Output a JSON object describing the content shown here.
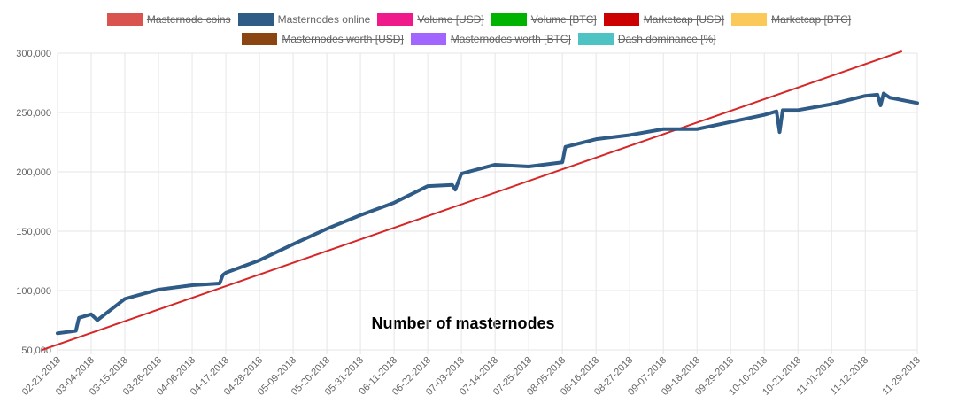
{
  "chart_data": {
    "type": "line",
    "annotation": "Number of masternodes",
    "legend": [
      {
        "name": "Masternode coins",
        "color": "#d9534f",
        "hidden": true
      },
      {
        "name": "Masternodes online",
        "color": "#2f5b87",
        "hidden": false
      },
      {
        "name": "Volume [USD]",
        "color": "#f0198c",
        "hidden": true
      },
      {
        "name": "Volume [BTC]",
        "color": "#00b300",
        "hidden": true
      },
      {
        "name": "Marketcap [USD]",
        "color": "#cc0000",
        "hidden": true
      },
      {
        "name": "Marketcap [BTC]",
        "color": "#fbc85a",
        "hidden": true
      },
      {
        "name": "Masternodes worth [USD]",
        "color": "#8b4513",
        "hidden": true
      },
      {
        "name": "Masternodes worth [BTC]",
        "color": "#a066ff",
        "hidden": true
      },
      {
        "name": "Dash dominance [%]",
        "color": "#4fc3c3",
        "hidden": true
      }
    ],
    "x": [
      "02-21-2018",
      "02-27-2018",
      "02-28-2018",
      "03-04-2018",
      "03-06-2018",
      "03-15-2018",
      "03-26-2018",
      "04-06-2018",
      "04-15-2018",
      "04-16-2018",
      "04-17-2018",
      "04-28-2018",
      "05-09-2018",
      "05-20-2018",
      "05-31-2018",
      "06-11-2018",
      "06-22-2018",
      "06-30-2018",
      "07-01-2018",
      "07-03-2018",
      "07-14-2018",
      "07-25-2018",
      "08-05-2018",
      "08-06-2018",
      "08-16-2018",
      "08-27-2018",
      "09-07-2018",
      "09-18-2018",
      "09-29-2018",
      "10-10-2018",
      "10-14-2018",
      "10-15-2018",
      "10-16-2018",
      "10-21-2018",
      "11-01-2018",
      "11-12-2018",
      "11-16-2018",
      "11-17-2018",
      "11-18-2018",
      "11-20-2018",
      "11-29-2018"
    ],
    "series": [
      {
        "name": "Masternodes online",
        "color": "#2f5b87",
        "values": [
          64000,
          66000,
          77000,
          80000,
          75000,
          93000,
          100800,
          104500,
          106000,
          113000,
          115000,
          125500,
          139000,
          152000,
          163500,
          174000,
          188000,
          189000,
          185000,
          198500,
          206000,
          204500,
          208000,
          221000,
          227500,
          231000,
          236000,
          236000,
          242000,
          248000,
          251000,
          233500,
          252000,
          252000,
          257000,
          264000,
          265000,
          256000,
          266000,
          262500,
          258000
        ]
      }
    ],
    "trend_line": {
      "color": "#d62728",
      "x": [
        "02-16-2018",
        "11-24-2018"
      ],
      "values": [
        50000,
        301500
      ]
    },
    "xlim": [
      "02-21-2018",
      "11-29-2018"
    ],
    "xticks": [
      "02-21-2018",
      "03-04-2018",
      "03-15-2018",
      "03-26-2018",
      "04-06-2018",
      "04-17-2018",
      "04-28-2018",
      "05-09-2018",
      "05-20-2018",
      "05-31-2018",
      "06-11-2018",
      "06-22-2018",
      "07-03-2018",
      "07-14-2018",
      "07-25-2018",
      "08-05-2018",
      "08-16-2018",
      "08-27-2018",
      "09-07-2018",
      "09-18-2018",
      "09-29-2018",
      "10-10-2018",
      "10-21-2018",
      "11-01-2018",
      "11-12-2018",
      "11-29-2018"
    ],
    "ylim": [
      50000,
      300000
    ],
    "yticks": [
      {
        "value": 50000,
        "label": "50,000"
      },
      {
        "value": 100000,
        "label": "100,000"
      },
      {
        "value": 150000,
        "label": "150,000"
      },
      {
        "value": 200000,
        "label": "200,000"
      },
      {
        "value": 250000,
        "label": "250,000"
      },
      {
        "value": 300000,
        "label": "300,000"
      }
    ],
    "grid": true
  }
}
